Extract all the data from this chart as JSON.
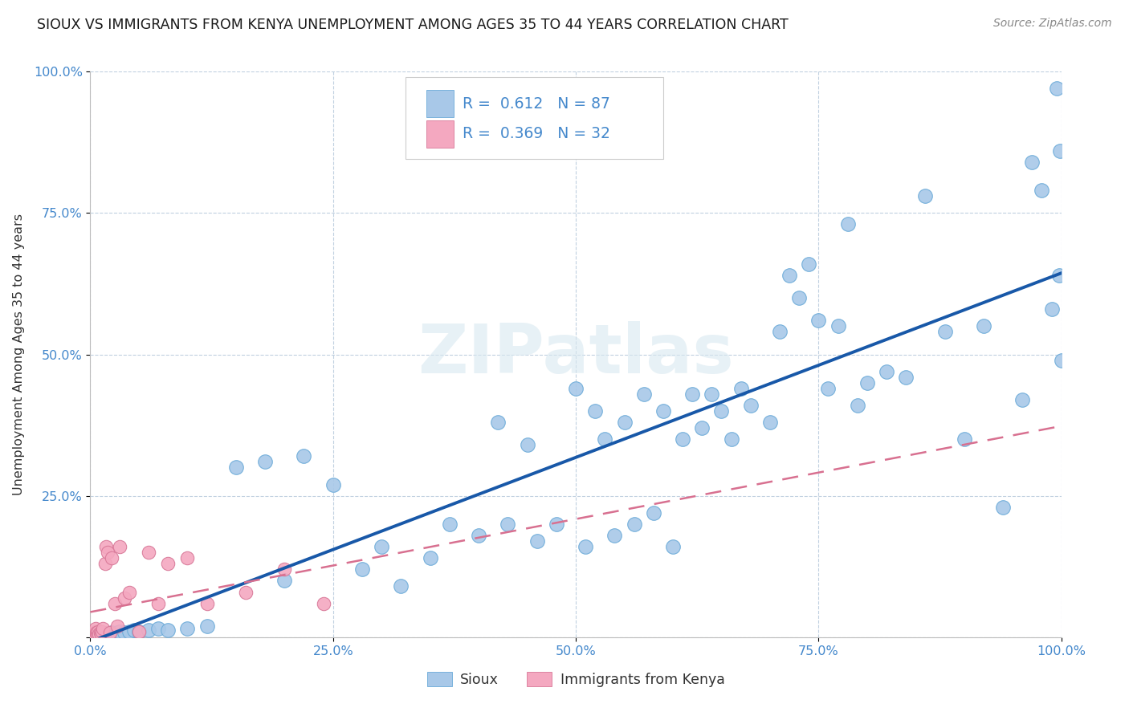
{
  "title": "SIOUX VS IMMIGRANTS FROM KENYA UNEMPLOYMENT AMONG AGES 35 TO 44 YEARS CORRELATION CHART",
  "source": "Source: ZipAtlas.com",
  "ylabel": "Unemployment Among Ages 35 to 44 years",
  "xlim": [
    0,
    1.0
  ],
  "ylim": [
    0,
    1.0
  ],
  "xticks": [
    0.0,
    0.25,
    0.5,
    0.75,
    1.0
  ],
  "yticks": [
    0.0,
    0.25,
    0.5,
    0.75,
    1.0
  ],
  "xticklabels": [
    "0.0%",
    "25.0%",
    "50.0%",
    "75.0%",
    "100.0%"
  ],
  "yticklabels": [
    "",
    "25.0%",
    "50.0%",
    "75.0%",
    "100.0%"
  ],
  "sioux_color": "#a8c8e8",
  "sioux_edge_color": "#6aaad8",
  "kenya_color": "#f4a8c0",
  "kenya_edge_color": "#d87898",
  "sioux_line_color": "#1858a8",
  "kenya_line_color": "#d87090",
  "R_sioux": 0.612,
  "N_sioux": 87,
  "R_kenya": 0.369,
  "N_kenya": 32,
  "legend_text_color": "#4488cc",
  "background_color": "#ffffff",
  "grid_color": "#c0d0e0",
  "title_color": "#1a1a1a",
  "tick_color": "#4488cc",
  "ylabel_color": "#333333",
  "watermark_color": "#d8e8f0",
  "sioux_x": [
    0.005,
    0.006,
    0.007,
    0.008,
    0.009,
    0.01,
    0.011,
    0.012,
    0.013,
    0.015,
    0.016,
    0.018,
    0.02,
    0.022,
    0.025,
    0.028,
    0.03,
    0.035,
    0.04,
    0.045,
    0.05,
    0.06,
    0.07,
    0.08,
    0.1,
    0.12,
    0.15,
    0.18,
    0.2,
    0.22,
    0.25,
    0.28,
    0.3,
    0.32,
    0.35,
    0.37,
    0.4,
    0.42,
    0.43,
    0.45,
    0.46,
    0.48,
    0.5,
    0.51,
    0.52,
    0.53,
    0.54,
    0.55,
    0.56,
    0.57,
    0.58,
    0.59,
    0.6,
    0.61,
    0.62,
    0.63,
    0.64,
    0.65,
    0.66,
    0.67,
    0.68,
    0.7,
    0.71,
    0.72,
    0.73,
    0.74,
    0.75,
    0.76,
    0.77,
    0.78,
    0.79,
    0.8,
    0.82,
    0.84,
    0.86,
    0.88,
    0.9,
    0.92,
    0.94,
    0.96,
    0.97,
    0.98,
    0.99,
    0.995,
    0.998,
    0.999,
    1.0
  ],
  "sioux_y": [
    0.005,
    0.006,
    0.007,
    0.005,
    0.006,
    0.008,
    0.007,
    0.005,
    0.006,
    0.007,
    0.005,
    0.006,
    0.007,
    0.008,
    0.006,
    0.008,
    0.01,
    0.008,
    0.01,
    0.012,
    0.01,
    0.012,
    0.015,
    0.012,
    0.015,
    0.02,
    0.3,
    0.31,
    0.1,
    0.32,
    0.27,
    0.12,
    0.16,
    0.09,
    0.14,
    0.2,
    0.18,
    0.38,
    0.2,
    0.34,
    0.17,
    0.2,
    0.44,
    0.16,
    0.4,
    0.35,
    0.18,
    0.38,
    0.2,
    0.43,
    0.22,
    0.4,
    0.16,
    0.35,
    0.43,
    0.37,
    0.43,
    0.4,
    0.35,
    0.44,
    0.41,
    0.38,
    0.54,
    0.64,
    0.6,
    0.66,
    0.56,
    0.44,
    0.55,
    0.73,
    0.41,
    0.45,
    0.47,
    0.46,
    0.78,
    0.54,
    0.35,
    0.55,
    0.23,
    0.42,
    0.84,
    0.79,
    0.58,
    0.97,
    0.64,
    0.86,
    0.49
  ],
  "kenya_x": [
    0.002,
    0.003,
    0.004,
    0.005,
    0.005,
    0.006,
    0.007,
    0.008,
    0.009,
    0.01,
    0.011,
    0.012,
    0.013,
    0.015,
    0.016,
    0.018,
    0.02,
    0.022,
    0.025,
    0.028,
    0.03,
    0.035,
    0.04,
    0.05,
    0.06,
    0.07,
    0.08,
    0.1,
    0.12,
    0.16,
    0.2,
    0.24
  ],
  "kenya_y": [
    0.005,
    0.006,
    0.005,
    0.01,
    0.015,
    0.008,
    0.005,
    0.01,
    0.006,
    0.008,
    0.005,
    0.01,
    0.015,
    0.13,
    0.16,
    0.15,
    0.008,
    0.14,
    0.06,
    0.02,
    0.16,
    0.07,
    0.08,
    0.01,
    0.15,
    0.06,
    0.13,
    0.14,
    0.06,
    0.08,
    0.12,
    0.06
  ]
}
